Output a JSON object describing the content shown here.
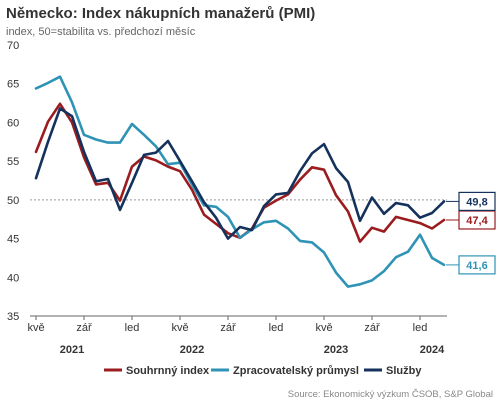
{
  "title": "Německo: Index nákupních manažerů (PMI)",
  "subtitle": "index, 50=stabilita vs. předchozí měsíc",
  "source": "Source: Ekonomický výzkum ČSOB, S&P Global",
  "chart_data": {
    "type": "line",
    "ylim": [
      35,
      70
    ],
    "y_ticks": [
      "35",
      "40",
      "45",
      "50",
      "55",
      "60",
      "65",
      "70"
    ],
    "reference_line": 50,
    "x": [
      "2021-05",
      "2021-06",
      "2021-07",
      "2021-08",
      "2021-09",
      "2021-10",
      "2021-11",
      "2021-12",
      "2022-01",
      "2022-02",
      "2022-03",
      "2022-04",
      "2022-05",
      "2022-06",
      "2022-07",
      "2022-08",
      "2022-09",
      "2022-10",
      "2022-11",
      "2022-12",
      "2023-01",
      "2023-02",
      "2023-03",
      "2023-04",
      "2023-05",
      "2023-06",
      "2023-07",
      "2023-08",
      "2023-09",
      "2023-10",
      "2023-11",
      "2023-12",
      "2024-01",
      "2024-02",
      "2024-03"
    ],
    "x_tick_labels": [
      {
        "x": "2021-05",
        "label": "kvě"
      },
      {
        "x": "2021-09",
        "label": "zář"
      },
      {
        "x": "2022-01",
        "label": "led"
      },
      {
        "x": "2022-05",
        "label": "kvě"
      },
      {
        "x": "2022-09",
        "label": "zář"
      },
      {
        "x": "2023-01",
        "label": "led"
      },
      {
        "x": "2023-05",
        "label": "kvě"
      },
      {
        "x": "2023-09",
        "label": "zář"
      },
      {
        "x": "2024-01",
        "label": "led"
      }
    ],
    "year_labels": [
      {
        "x": "2021-08",
        "label": "2021"
      },
      {
        "x": "2022-06",
        "label": "2022"
      },
      {
        "x": "2023-06",
        "label": "2023"
      },
      {
        "x": "2024-02",
        "label": "2024"
      }
    ],
    "legend_position": "bottom",
    "series": [
      {
        "name": "Souhrnný index",
        "color": "#9b1c1f",
        "end_label": "47,4",
        "values": [
          56.2,
          60.1,
          62.4,
          60.0,
          55.5,
          52.0,
          52.2,
          49.9,
          54.3,
          55.6,
          55.1,
          54.3,
          53.7,
          51.3,
          48.1,
          46.9,
          45.7,
          45.1,
          46.3,
          49.0,
          49.9,
          50.7,
          52.6,
          54.2,
          53.9,
          50.6,
          48.5,
          44.6,
          46.4,
          45.9,
          47.8,
          47.4,
          47.0,
          46.3,
          47.4
        ]
      },
      {
        "name": "Zpracovatelský průmysl",
        "color": "#2f93b6",
        "end_label": "41,6",
        "values": [
          64.4,
          65.1,
          65.9,
          62.6,
          58.4,
          57.8,
          57.4,
          57.4,
          59.8,
          58.4,
          56.9,
          54.6,
          54.8,
          52.0,
          49.3,
          49.1,
          47.8,
          45.1,
          46.2,
          47.1,
          47.3,
          46.3,
          44.7,
          44.5,
          43.2,
          40.6,
          38.8,
          39.1,
          39.6,
          40.8,
          42.6,
          43.3,
          45.5,
          42.5,
          41.6
        ]
      },
      {
        "name": "Služby",
        "color": "#14325c",
        "end_label": "49,8",
        "values": [
          52.8,
          57.5,
          61.8,
          60.8,
          56.2,
          52.4,
          52.7,
          48.7,
          52.2,
          55.8,
          56.1,
          57.6,
          55.0,
          52.4,
          49.7,
          47.7,
          45.0,
          46.5,
          46.1,
          49.2,
          50.7,
          50.9,
          53.7,
          56.0,
          57.2,
          54.1,
          52.3,
          47.3,
          50.3,
          48.2,
          49.6,
          49.3,
          47.7,
          48.3,
          49.8
        ]
      }
    ]
  }
}
